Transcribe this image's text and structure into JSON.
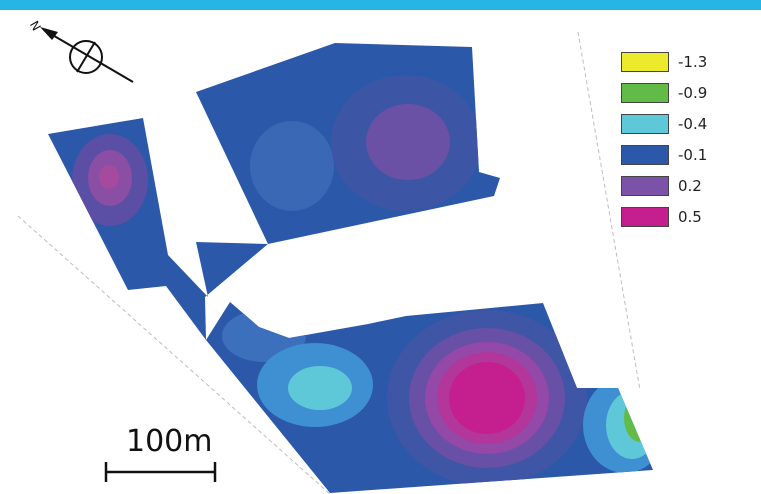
{
  "legend": {
    "items": [
      {
        "label": "-1.3",
        "color": "#ecea2a"
      },
      {
        "label": "-0.9",
        "color": "#62bb47"
      },
      {
        "label": "-0.4",
        "color": "#5fc8d8"
      },
      {
        "label": "-0.1",
        "color": "#2b58a8"
      },
      {
        "label": "0.2",
        "color": "#7b52a8"
      },
      {
        "label": "0.5",
        "color": "#c41e8f"
      }
    ]
  },
  "scale_bar": {
    "label": "100m"
  },
  "north_arrow": {
    "label": "N"
  },
  "colors": {
    "header_bar": "#27b5e6"
  }
}
